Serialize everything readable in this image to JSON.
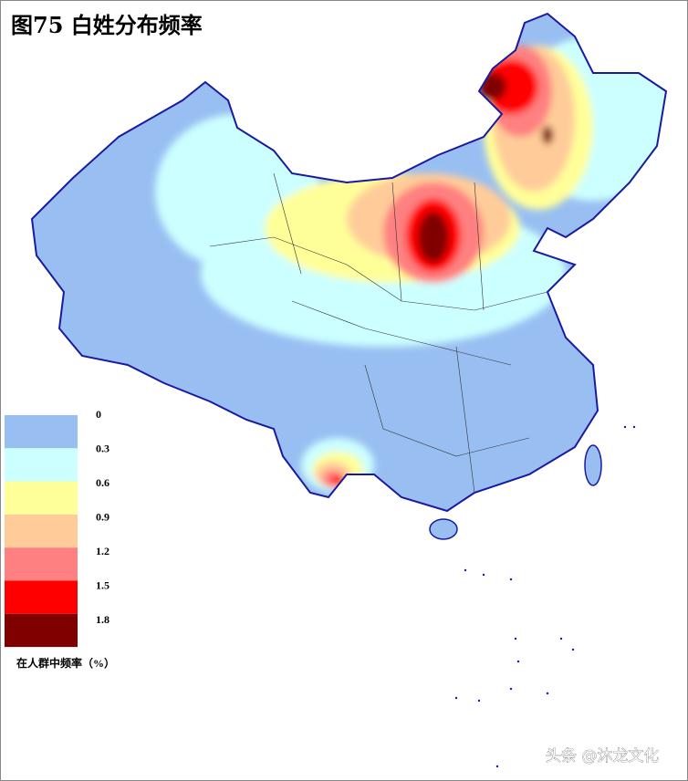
{
  "title": "图75  白姓分布频率",
  "legend": {
    "title": "在人群中频率（%）",
    "items": [
      {
        "label": 0,
        "color": "#99bff2"
      },
      {
        "label": 0.3,
        "color": "#ccffff"
      },
      {
        "label": 0.6,
        "color": "#ffff99"
      },
      {
        "label": 0.9,
        "color": "#ffcc99"
      },
      {
        "label": 1.2,
        "color": "#ff8080"
      },
      {
        "label": 1.5,
        "color": "#ff0000"
      },
      {
        "label": 1.8,
        "color": "#800000"
      }
    ]
  },
  "watermark": "头条 @沐龙文化"
}
